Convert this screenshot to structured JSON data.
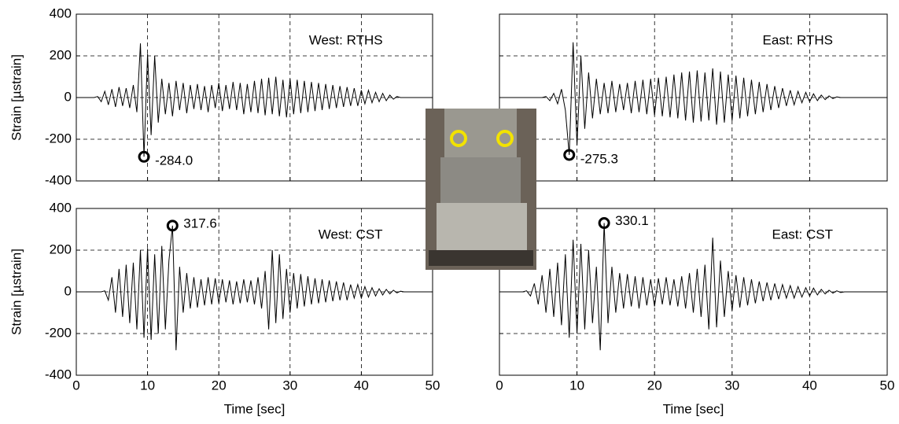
{
  "chart_data": [
    {
      "type": "line",
      "text": "West: RTHS",
      "y_label": "Strain [µstrain]",
      "show_xtick_labels": false,
      "show_ytick_labels": true,
      "grid": true,
      "color": "#000000",
      "xlim": [
        0,
        50
      ],
      "xticks": [
        0,
        10,
        20,
        30,
        40,
        50
      ],
      "ylim": [
        -400,
        400
      ],
      "yticks": [
        -400,
        -200,
        0,
        200,
        400
      ],
      "x": [
        0,
        0.5,
        1,
        1.5,
        2,
        2.5,
        3,
        3.5,
        4,
        4.5,
        5,
        5.5,
        6,
        6.5,
        7,
        7.5,
        8,
        8.5,
        9,
        9.5,
        10,
        10.5,
        11,
        11.5,
        12,
        12.5,
        13,
        13.5,
        14,
        14.5,
        15,
        15.5,
        16,
        16.5,
        17,
        17.5,
        18,
        18.5,
        19,
        19.5,
        20,
        20.5,
        21,
        21.5,
        22,
        22.5,
        23,
        23.5,
        24,
        24.5,
        25,
        25.5,
        26,
        26.5,
        27,
        27.5,
        28,
        28.5,
        29,
        29.5,
        30,
        30.5,
        31,
        31.5,
        32,
        32.5,
        33,
        33.5,
        34,
        34.5,
        35,
        35.5,
        36,
        36.5,
        37,
        37.5,
        38,
        38.5,
        39,
        39.5,
        40,
        40.5,
        41,
        41.5,
        42,
        42.5,
        43,
        43.5,
        44,
        44.5,
        45,
        45.5,
        46,
        46.5,
        47,
        47.5,
        48,
        48.5,
        49,
        49.5,
        50
      ],
      "values": [
        0,
        0,
        0,
        0,
        0,
        0,
        5,
        -20,
        30,
        -35,
        40,
        -45,
        50,
        -40,
        45,
        -50,
        60,
        -70,
        260,
        -284,
        210,
        -180,
        200,
        -120,
        90,
        -80,
        70,
        -90,
        80,
        -60,
        70,
        -75,
        60,
        -55,
        65,
        -60,
        55,
        -70,
        60,
        -50,
        70,
        -65,
        60,
        -55,
        75,
        -60,
        70,
        -80,
        65,
        -70,
        80,
        -75,
        90,
        -85,
        95,
        -80,
        100,
        -90,
        85,
        -95,
        90,
        -80,
        85,
        -75,
        80,
        -70,
        75,
        -65,
        70,
        -60,
        65,
        -55,
        60,
        -50,
        55,
        -45,
        50,
        -40,
        45,
        -40,
        35,
        -30,
        35,
        -25,
        25,
        -20,
        20,
        -15,
        12,
        -8,
        5,
        0,
        0,
        0,
        0,
        0,
        0,
        0,
        0,
        0,
        0
      ],
      "annotations": [
        {
          "x": 9.5,
          "y": -284,
          "label": "-284.0"
        }
      ]
    },
    {
      "type": "line",
      "text": "East: RTHS",
      "show_xtick_labels": false,
      "show_ytick_labels": false,
      "grid": true,
      "color": "#000000",
      "xlim": [
        0,
        50
      ],
      "xticks": [
        0,
        10,
        20,
        30,
        40,
        50
      ],
      "ylim": [
        -400,
        400
      ],
      "yticks": [
        -400,
        -200,
        0,
        200,
        400
      ],
      "x": [
        0,
        0.5,
        1,
        1.5,
        2,
        2.5,
        3,
        3.5,
        4,
        4.5,
        5,
        5.5,
        6,
        6.5,
        7,
        7.5,
        8,
        8.5,
        9,
        9.5,
        10,
        10.5,
        11,
        11.5,
        12,
        12.5,
        13,
        13.5,
        14,
        14.5,
        15,
        15.5,
        16,
        16.5,
        17,
        17.5,
        18,
        18.5,
        19,
        19.5,
        20,
        20.5,
        21,
        21.5,
        22,
        22.5,
        23,
        23.5,
        24,
        24.5,
        25,
        25.5,
        26,
        26.5,
        27,
        27.5,
        28,
        28.5,
        29,
        29.5,
        30,
        30.5,
        31,
        31.5,
        32,
        32.5,
        33,
        33.5,
        34,
        34.5,
        35,
        35.5,
        36,
        36.5,
        37,
        37.5,
        38,
        38.5,
        39,
        39.5,
        40,
        40.5,
        41,
        41.5,
        42,
        42.5,
        43,
        43.5,
        44,
        44.5,
        45,
        45.5,
        46,
        46.5,
        47,
        47.5,
        48,
        48.5,
        49,
        49.5,
        50
      ],
      "values": [
        0,
        0,
        0,
        0,
        0,
        0,
        0,
        0,
        0,
        0,
        0,
        0,
        5,
        -15,
        20,
        -30,
        40,
        -60,
        -275.3,
        265,
        -230,
        200,
        -150,
        120,
        -100,
        90,
        -80,
        70,
        -75,
        80,
        -70,
        65,
        -60,
        70,
        -75,
        80,
        -70,
        85,
        -80,
        90,
        -85,
        95,
        -90,
        100,
        -95,
        110,
        -100,
        120,
        -110,
        125,
        -120,
        130,
        -115,
        120,
        -110,
        140,
        -130,
        125,
        -120,
        110,
        -110,
        105,
        -100,
        95,
        -90,
        85,
        -80,
        75,
        -70,
        65,
        -60,
        55,
        -50,
        45,
        -40,
        35,
        -35,
        30,
        -25,
        25,
        -20,
        18,
        -15,
        12,
        -10,
        8,
        -5,
        3,
        0,
        0,
        0,
        0,
        0,
        0,
        0,
        0,
        0,
        0,
        0,
        0,
        0
      ],
      "annotations": [
        {
          "x": 9,
          "y": -275.3,
          "label": "-275.3"
        }
      ]
    },
    {
      "type": "line",
      "text": "West: CST",
      "y_label": "Strain [µstrain]",
      "x_label": "Time [sec]",
      "show_xtick_labels": true,
      "show_ytick_labels": true,
      "grid": true,
      "color": "#000000",
      "xlim": [
        0,
        50
      ],
      "xticks": [
        0,
        10,
        20,
        30,
        40,
        50
      ],
      "ylim": [
        -400,
        400
      ],
      "yticks": [
        -400,
        -200,
        0,
        200,
        400
      ],
      "x": [
        0,
        0.5,
        1,
        1.5,
        2,
        2.5,
        3,
        3.5,
        4,
        4.5,
        5,
        5.5,
        6,
        6.5,
        7,
        7.5,
        8,
        8.5,
        9,
        9.5,
        10,
        10.5,
        11,
        11.5,
        12,
        12.5,
        13,
        13.5,
        14,
        14.5,
        15,
        15.5,
        16,
        16.5,
        17,
        17.5,
        18,
        18.5,
        19,
        19.5,
        20,
        20.5,
        21,
        21.5,
        22,
        22.5,
        23,
        23.5,
        24,
        24.5,
        25,
        25.5,
        26,
        26.5,
        27,
        27.5,
        28,
        28.5,
        29,
        29.5,
        30,
        30.5,
        31,
        31.5,
        32,
        32.5,
        33,
        33.5,
        34,
        34.5,
        35,
        35.5,
        36,
        36.5,
        37,
        37.5,
        38,
        38.5,
        39,
        39.5,
        40,
        40.5,
        41,
        41.5,
        42,
        42.5,
        43,
        43.5,
        44,
        44.5,
        45,
        45.5,
        46,
        46.5,
        47,
        47.5,
        48,
        48.5,
        49,
        49.5,
        50
      ],
      "values": [
        0,
        0,
        0,
        0,
        0,
        0,
        0,
        0,
        5,
        -40,
        70,
        -100,
        110,
        -120,
        130,
        -150,
        140,
        -180,
        200,
        -220,
        210,
        -230,
        180,
        -200,
        220,
        -180,
        150,
        317.6,
        -280,
        120,
        -100,
        90,
        -80,
        70,
        -75,
        60,
        -65,
        70,
        -60,
        65,
        -55,
        60,
        -50,
        55,
        -60,
        50,
        -55,
        60,
        -50,
        55,
        -60,
        70,
        -80,
        100,
        -180,
        200,
        -150,
        180,
        -130,
        110,
        -100,
        90,
        -80,
        85,
        -70,
        75,
        -60,
        65,
        -55,
        60,
        -50,
        55,
        -45,
        50,
        -40,
        45,
        -40,
        35,
        -30,
        35,
        -30,
        25,
        -25,
        20,
        -20,
        15,
        -15,
        12,
        -10,
        8,
        -5,
        3,
        0,
        0,
        0,
        0,
        0,
        0,
        0,
        0,
        0
      ],
      "annotations": [
        {
          "x": 13.5,
          "y": 317.6,
          "label": "317.6"
        }
      ]
    },
    {
      "type": "line",
      "text": "East: CST",
      "x_label": "Time [sec]",
      "show_xtick_labels": true,
      "show_ytick_labels": false,
      "grid": true,
      "color": "#000000",
      "xlim": [
        0,
        50
      ],
      "xticks": [
        0,
        10,
        20,
        30,
        40,
        50
      ],
      "ylim": [
        -400,
        400
      ],
      "yticks": [
        -400,
        -200,
        0,
        200,
        400
      ],
      "x": [
        0,
        0.5,
        1,
        1.5,
        2,
        2.5,
        3,
        3.5,
        4,
        4.5,
        5,
        5.5,
        6,
        6.5,
        7,
        7.5,
        8,
        8.5,
        9,
        9.5,
        10,
        10.5,
        11,
        11.5,
        12,
        12.5,
        13,
        13.5,
        14,
        14.5,
        15,
        15.5,
        16,
        16.5,
        17,
        17.5,
        18,
        18.5,
        19,
        19.5,
        20,
        20.5,
        21,
        21.5,
        22,
        22.5,
        23,
        23.5,
        24,
        24.5,
        25,
        25.5,
        26,
        26.5,
        27,
        27.5,
        28,
        28.5,
        29,
        29.5,
        30,
        30.5,
        31,
        31.5,
        32,
        32.5,
        33,
        33.5,
        34,
        34.5,
        35,
        35.5,
        36,
        36.5,
        37,
        37.5,
        38,
        38.5,
        39,
        39.5,
        40,
        40.5,
        41,
        41.5,
        42,
        42.5,
        43,
        43.5,
        44,
        44.5,
        45,
        45.5,
        46,
        46.5,
        47,
        47.5,
        48,
        48.5,
        49,
        49.5,
        50
      ],
      "values": [
        0,
        0,
        0,
        0,
        0,
        0,
        0,
        5,
        -20,
        40,
        -60,
        80,
        -100,
        110,
        -120,
        140,
        -160,
        180,
        -220,
        250,
        -200,
        230,
        -180,
        200,
        -150,
        120,
        -280,
        330.1,
        -150,
        120,
        -100,
        90,
        -80,
        85,
        -70,
        75,
        -80,
        70,
        -65,
        60,
        -70,
        65,
        -60,
        70,
        -65,
        60,
        -70,
        75,
        -80,
        90,
        -100,
        110,
        -120,
        130,
        -180,
        260,
        -170,
        150,
        -120,
        100,
        -90,
        80,
        -75,
        70,
        -65,
        60,
        -55,
        50,
        -45,
        45,
        -40,
        40,
        -35,
        35,
        -30,
        30,
        -30,
        25,
        -25,
        20,
        -20,
        18,
        -15,
        12,
        -10,
        8,
        -6,
        5,
        -3,
        0,
        0,
        0,
        0,
        0,
        0,
        0,
        0,
        0,
        0,
        0,
        0
      ],
      "annotations": [
        {
          "x": 13.5,
          "y": 330.1,
          "label": "330.1"
        }
      ]
    }
  ]
}
